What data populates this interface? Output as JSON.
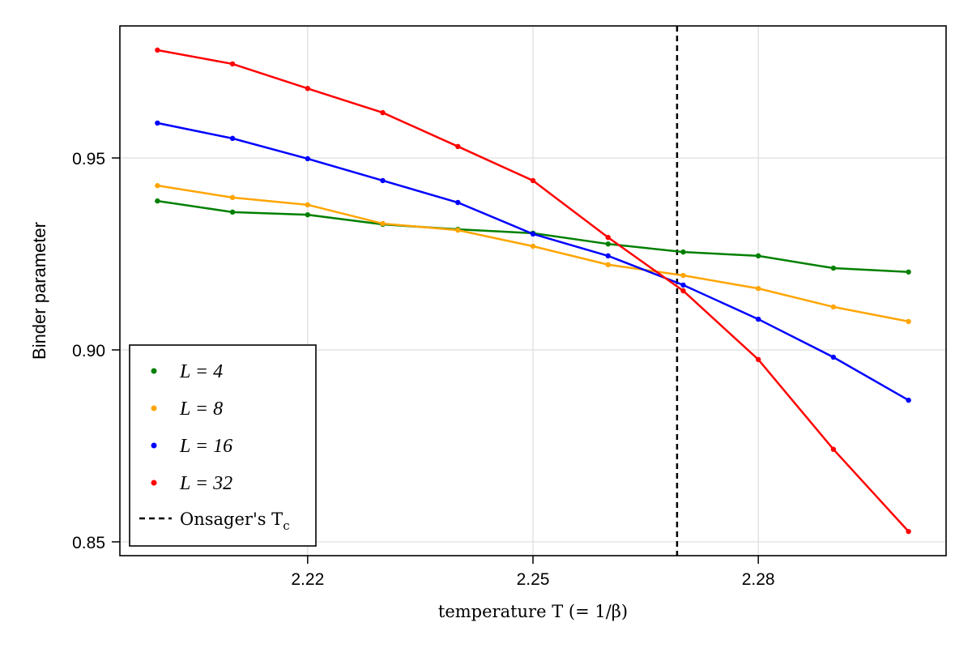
{
  "chart_data": {
    "type": "line",
    "title": "",
    "xlabel": "temperature T (= 1/β)",
    "ylabel": "Binder parameter",
    "xlim": [
      2.195,
      2.305
    ],
    "ylim": [
      0.8464,
      0.9844
    ],
    "xticks": [
      2.22,
      2.25,
      2.28
    ],
    "xtick_labels": [
      "2.22",
      "2.25",
      "2.28"
    ],
    "yticks": [
      0.85,
      0.9,
      0.95
    ],
    "ytick_labels": [
      "0.85",
      "0.90",
      "0.95"
    ],
    "grid": true,
    "legend_position": "bottom-left",
    "x": [
      2.2,
      2.21,
      2.22,
      2.23,
      2.24,
      2.25,
      2.26,
      2.27,
      2.28,
      2.29,
      2.3
    ],
    "series": [
      {
        "name": "L = 4",
        "color": "#008000",
        "values": [
          0.9388,
          0.9359,
          0.9352,
          0.9327,
          0.9314,
          0.9304,
          0.9276,
          0.9255,
          0.9245,
          0.9213,
          0.9203
        ]
      },
      {
        "name": "L = 8",
        "color": "#FFA500",
        "values": [
          0.9428,
          0.9397,
          0.9378,
          0.9329,
          0.9312,
          0.927,
          0.9222,
          0.9194,
          0.916,
          0.9112,
          0.9074
        ]
      },
      {
        "name": "L = 16",
        "color": "#0000FF",
        "values": [
          0.9591,
          0.9551,
          0.9498,
          0.9441,
          0.9384,
          0.9302,
          0.9245,
          0.9169,
          0.908,
          0.8981,
          0.8869
        ]
      },
      {
        "name": "L = 32",
        "color": "#FF0000",
        "values": [
          0.9781,
          0.9745,
          0.9681,
          0.9618,
          0.953,
          0.9441,
          0.9293,
          0.9154,
          0.8975,
          0.8741,
          0.8527
        ]
      }
    ],
    "vline": {
      "name": "Onsager's Tc",
      "label": "Onsager's T",
      "subscript": "c",
      "x": 2.269185,
      "color": "#000000",
      "style": "dashed"
    }
  }
}
